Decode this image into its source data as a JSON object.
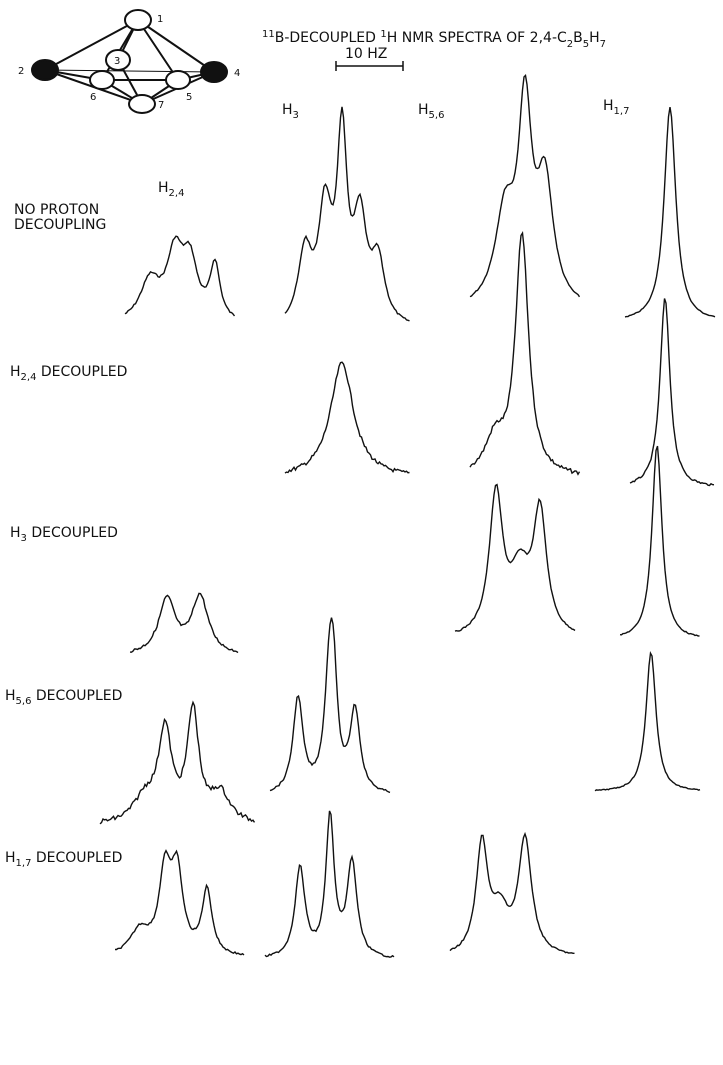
{
  "figure": {
    "title": {
      "sup1": "11",
      "t1": "B-DECOUPLED ",
      "sup2": "1",
      "t2": "H NMR SPECTRA OF 2,4-C",
      "s1": "2",
      "t3": "B",
      "s2": "5",
      "t4": "H",
      "s3": "7"
    },
    "scale_label": "10 HZ",
    "atoms": [
      "1",
      "2",
      "3",
      "4",
      "5",
      "6",
      "7"
    ],
    "columns": [
      {
        "main": "H",
        "sub": "2,4"
      },
      {
        "main": "H",
        "sub": "3"
      },
      {
        "main": "H",
        "sub": "5,6"
      },
      {
        "main": "H",
        "sub": "1,7"
      }
    ],
    "rows": [
      {
        "lines": [
          "NO PROTON",
          "DECOUPLING"
        ]
      },
      {
        "main": "H",
        "sub": "2,4",
        "rest": " DECOUPLED"
      },
      {
        "main": "H",
        "sub": "3",
        "rest": " DECOUPLED"
      },
      {
        "main": "H",
        "sub": "5,6",
        "rest": " DECOUPLED"
      },
      {
        "main": "H",
        "sub": "1,7",
        "rest": " DECOUPLED"
      }
    ]
  }
}
